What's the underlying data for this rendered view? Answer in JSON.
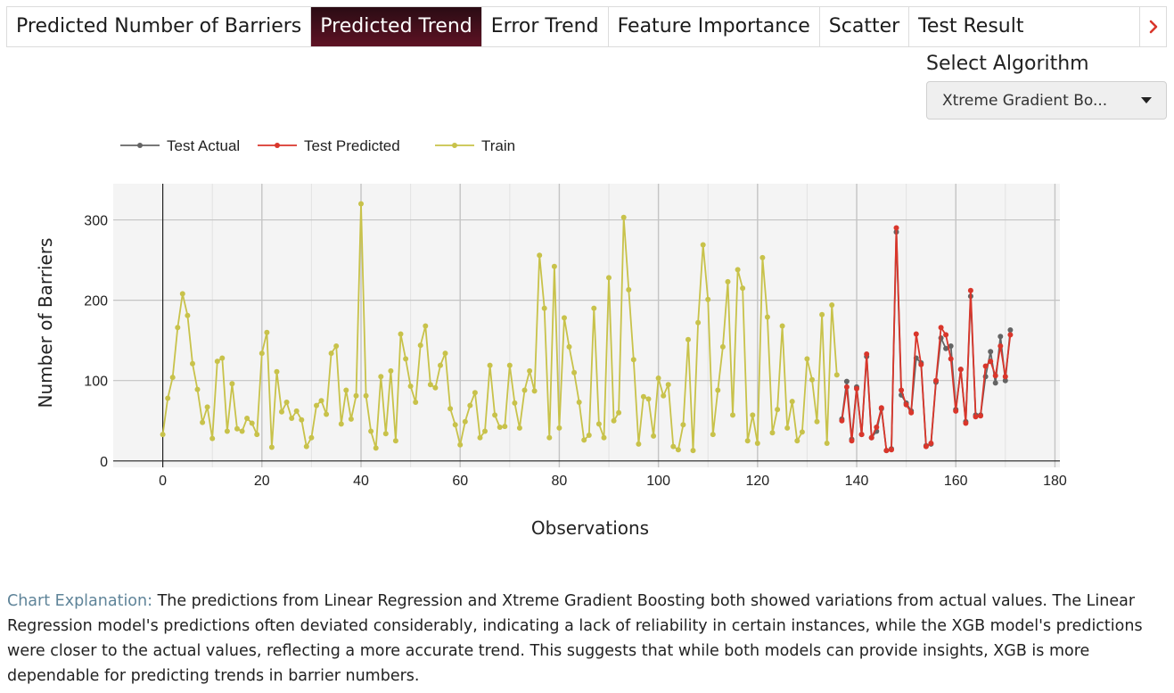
{
  "tabs": [
    "Predicted Number of Barriers",
    "Predicted Trend",
    "Error Trend",
    "Feature Importance",
    "Scatter",
    "Test Result"
  ],
  "active_tab": 1,
  "algorithm": {
    "label": "Select Algorithm",
    "selected": "Xtreme Gradient Bo..."
  },
  "explanation": {
    "label": "Chart Explanation:",
    "text": " The predictions from Linear Regression and Xtreme Gradient Boosting both showed variations from actual values. The Linear Regression model's predictions often deviated considerably, indicating a lack of reliability in certain instances, while the XGB model's predictions were closer to the actual values, reflecting a more accurate trend. This suggests that while both models can provide insights, XGB is more dependable for predicting trends in barrier numbers."
  },
  "colors": {
    "actual": "#646464",
    "predicted": "#d9362b",
    "train": "#c8c24a",
    "tab_active": "#4a0f1e",
    "next_arrow": "#d9362b"
  },
  "chart_data": {
    "type": "line",
    "xlabel": "Observations",
    "ylabel": "Number of Barriers",
    "xlim": [
      -10,
      181
    ],
    "ylim": [
      -8,
      345
    ],
    "xticks": [
      0,
      20,
      40,
      60,
      80,
      100,
      120,
      140,
      160,
      180
    ],
    "yticks": [
      0,
      100,
      200,
      300
    ],
    "legend_position": "top-left",
    "series": [
      {
        "name": "Test Actual",
        "x_start": 137,
        "values": [
          52,
          99,
          27,
          92,
          33,
          130,
          29,
          37,
          65,
          13,
          15,
          285,
          82,
          72,
          62,
          128,
          122,
          19,
          21,
          98,
          153,
          140,
          143,
          64,
          114,
          49,
          205,
          57,
          57,
          105,
          136,
          97,
          155,
          100,
          163
        ]
      },
      {
        "name": "Test Predicted",
        "x_start": 137,
        "values": [
          50,
          92,
          25,
          90,
          33,
          133,
          29,
          42,
          66,
          13,
          14,
          290,
          88,
          70,
          60,
          158,
          120,
          18,
          22,
          100,
          166,
          157,
          127,
          62,
          114,
          47,
          212,
          55,
          56,
          118,
          124,
          106,
          143,
          105,
          157
        ]
      },
      {
        "name": "Train",
        "x_start": 0,
        "values": [
          33,
          78,
          104,
          166,
          208,
          181,
          121,
          89,
          48,
          67,
          28,
          124,
          128,
          37,
          96,
          40,
          37,
          53,
          47,
          33,
          134,
          160,
          17,
          111,
          61,
          73,
          53,
          62,
          51,
          18,
          29,
          69,
          75,
          58,
          134,
          143,
          46,
          88,
          52,
          81,
          320,
          81,
          37,
          16,
          105,
          34,
          112,
          25,
          158,
          127,
          93,
          73,
          144,
          168,
          95,
          91,
          119,
          134,
          65,
          45,
          20,
          49,
          69,
          85,
          29,
          37,
          119,
          57,
          42,
          43,
          119,
          72,
          41,
          88,
          112,
          87,
          256,
          190,
          29,
          242,
          41,
          178,
          142,
          110,
          73,
          26,
          32,
          190,
          46,
          29,
          228,
          50,
          60,
          303,
          213,
          126,
          21,
          80,
          77,
          31,
          103,
          81,
          95,
          18,
          14,
          45,
          151,
          13,
          172,
          269,
          201,
          33,
          88,
          142,
          223,
          57,
          238,
          215,
          25,
          57,
          22,
          253,
          179,
          35,
          64,
          168,
          41,
          74,
          25,
          36,
          127,
          101,
          49,
          182,
          22,
          194,
          107
        ]
      }
    ]
  }
}
